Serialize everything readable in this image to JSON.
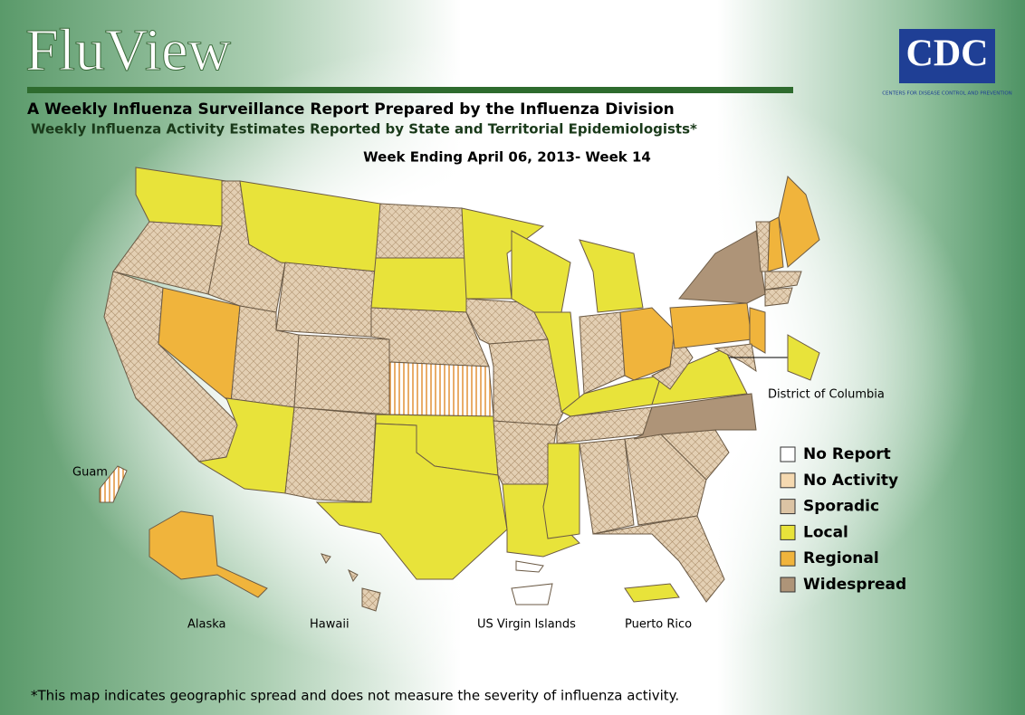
{
  "header": {
    "title": "FluView",
    "subtitle": "A Weekly Influenza Surveillance Report Prepared by the Influenza Division",
    "subtitle2": "Weekly Influenza Activity Estimates Reported by State and Territorial Epidemiologists*",
    "week": "Week Ending April 06, 2013- Week 14"
  },
  "logo": {
    "name": "CDC",
    "tagline": "CENTERS FOR DISEASE CONTROL AND PREVENTION"
  },
  "map": {
    "labels": [
      "District of Columbia",
      "Guam",
      "Alaska",
      "Hawaii",
      "US Virgin Islands",
      "Puerto Rico"
    ]
  },
  "legend": {
    "items": [
      {
        "label": "No Report",
        "color": "#ffffff"
      },
      {
        "label": "No Activity",
        "color": "#f5d9b0"
      },
      {
        "label": "Sporadic",
        "color": "#dcc4a4"
      },
      {
        "label": "Local",
        "color": "#e8e33a"
      },
      {
        "label": "Regional",
        "color": "#f0b43c"
      },
      {
        "label": "Widespread",
        "color": "#ae9478"
      }
    ]
  },
  "footnote": "*This map indicates geographic spread and does not measure the severity of influenza activity."
}
